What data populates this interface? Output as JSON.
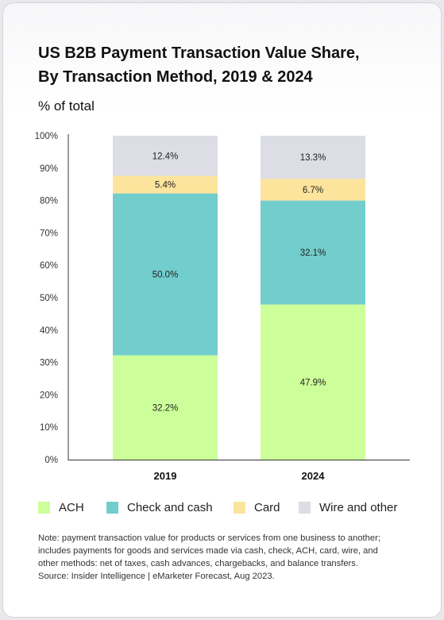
{
  "title_line1": "US B2B Payment Transaction Value Share,",
  "title_line2": "By Transaction Method, 2019 & 2024",
  "subtitle": "% of total",
  "chart_data": {
    "type": "bar",
    "stacked": true,
    "categories": [
      "2019",
      "2024"
    ],
    "series": [
      {
        "name": "ACH",
        "values": [
          32.2,
          47.9
        ],
        "color": "#ccff99",
        "labels": [
          "32.2%",
          "47.9%"
        ]
      },
      {
        "name": "Check and cash",
        "values": [
          50.0,
          32.1
        ],
        "color": "#72cdcd",
        "labels": [
          "50.0%",
          "32.1%"
        ]
      },
      {
        "name": "Card",
        "values": [
          5.4,
          6.7
        ],
        "color": "#fde49d",
        "labels": [
          "5.4%",
          "6.7%"
        ]
      },
      {
        "name": "Wire and other",
        "values": [
          12.4,
          13.3
        ],
        "color": "#dcdde5",
        "labels": [
          "12.4%",
          "13.3%"
        ]
      }
    ],
    "ylim": [
      0,
      100
    ],
    "yticks": [
      "0%",
      "10%",
      "20%",
      "30%",
      "40%",
      "50%",
      "60%",
      "70%",
      "80%",
      "90%",
      "100%"
    ],
    "grid": false,
    "legend_position": "bottom"
  },
  "note_lines": [
    "Note: payment transaction value for products or services from one business to another;",
    "includes payments for goods and services made via cash, check, ACH, card, wire, and",
    "other methods: net of taxes, cash advances, chargebacks, and balance transfers.",
    "Source: Insider Intelligence | eMarketer Forecast, Aug 2023."
  ]
}
